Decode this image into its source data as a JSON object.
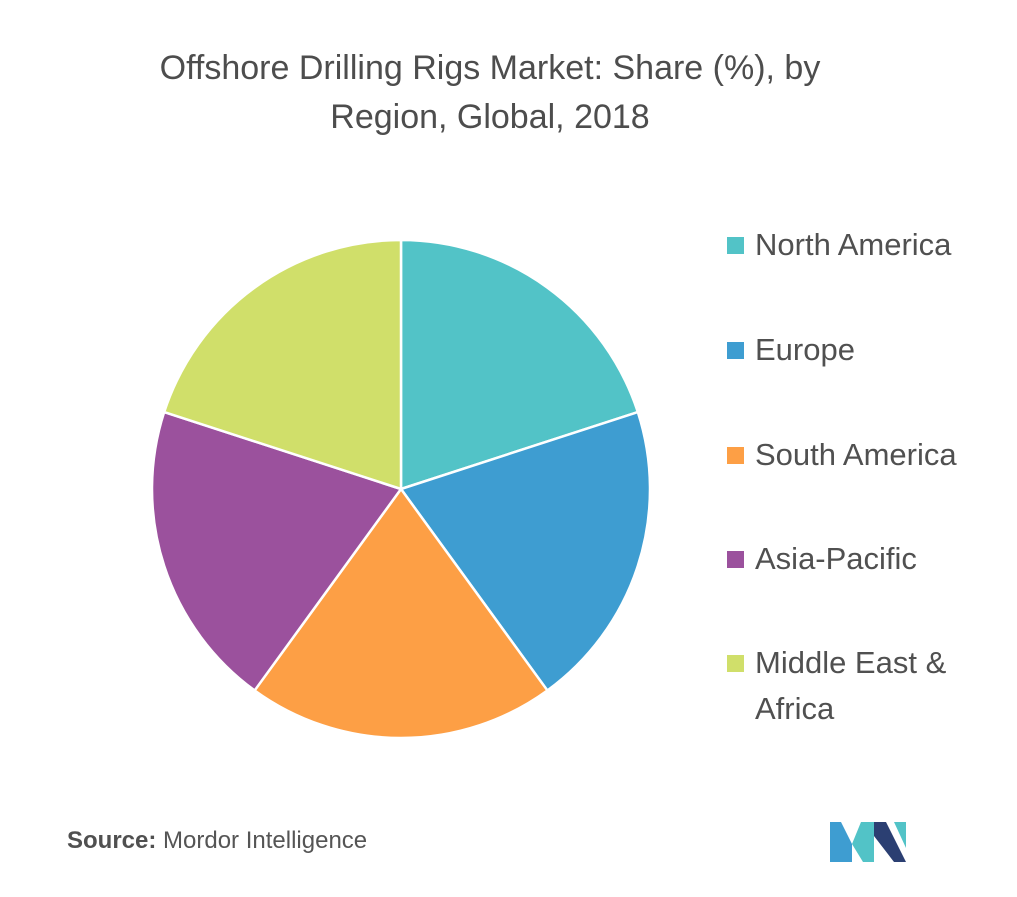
{
  "chart_data": {
    "type": "pie",
    "title_lines": [
      "Offshore Drilling Rigs Market: Share (%), by",
      "Region, Global,  2018"
    ],
    "slices": [
      {
        "label": "North America",
        "value": 20,
        "color": "#52c3c7"
      },
      {
        "label": "Europe",
        "value": 20,
        "color": "#3e9dd1"
      },
      {
        "label": "South America",
        "value": 20,
        "color": "#fd9f45"
      },
      {
        "label": "Asia-Pacific",
        "value": 20,
        "color": "#9b519d"
      },
      {
        "label": "Middle East & Africa",
        "value": 20,
        "color": "#d0df6a"
      }
    ],
    "legend_placement": "right"
  },
  "source": {
    "key": "Source:",
    "value": "Mordor Intelligence"
  },
  "logo": {
    "colors": [
      "#3e9dd1",
      "#52c3c7",
      "#2b3f72"
    ]
  }
}
